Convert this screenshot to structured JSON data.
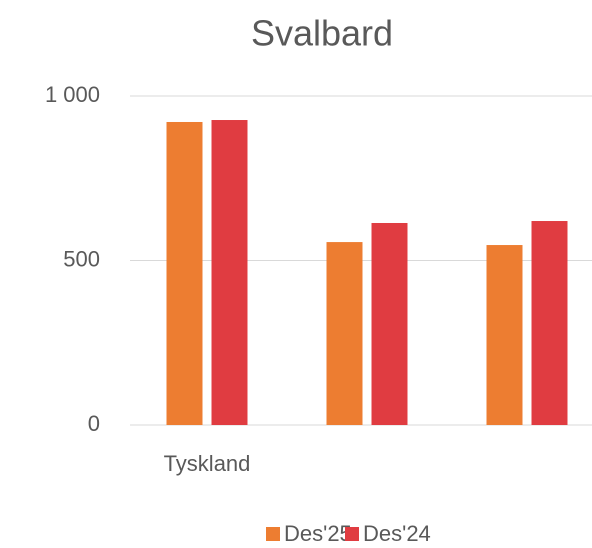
{
  "chart_data": {
    "type": "bar",
    "title": "Svalbard",
    "categories": [
      "Tyskland",
      null,
      null
    ],
    "series": [
      {
        "name": "Des'25",
        "color": "#ED7D31",
        "values": [
          921,
          556,
          547
        ]
      },
      {
        "name": "Des'24",
        "color": "#E03C41",
        "values": [
          927,
          614,
          620
        ]
      }
    ],
    "ylim": [
      0,
      1000
    ],
    "yticks": [
      0,
      500,
      {
        "value": 1000,
        "label": "1 000"
      }
    ],
    "grid": true,
    "legend": "bottom"
  }
}
